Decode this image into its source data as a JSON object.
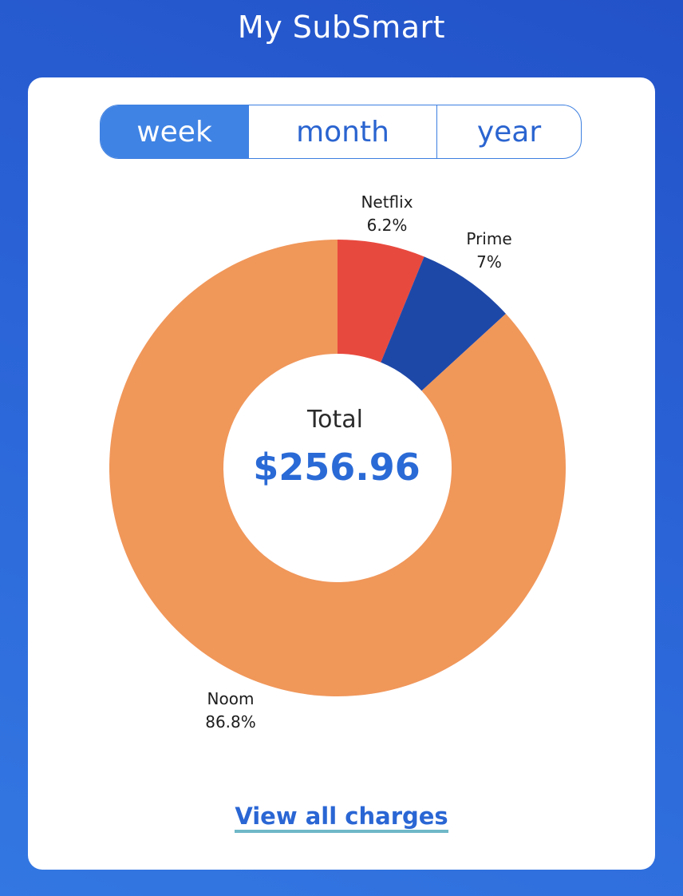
{
  "app": {
    "title": "My SubSmart"
  },
  "period_tabs": {
    "selected": "week",
    "items": [
      {
        "id": "week",
        "label": "week"
      },
      {
        "id": "month",
        "label": "month"
      },
      {
        "id": "year",
        "label": "year"
      }
    ]
  },
  "center": {
    "label": "Total",
    "amount": "$256.96"
  },
  "chart_data": {
    "type": "pie",
    "donut": true,
    "slices": [
      {
        "name": "Netflix",
        "value": 6.2,
        "label": "6.2%",
        "color": "#e8493e"
      },
      {
        "name": "Prime",
        "value": 7,
        "label": "7%",
        "color": "#1e48a8"
      },
      {
        "name": "Noom",
        "value": 86.8,
        "label": "86.8%",
        "color": "#f0975a"
      }
    ]
  },
  "footer": {
    "link_label": "View all charges"
  },
  "colors": {
    "accent": "#2a66d4",
    "active_tab": "#3f83e4",
    "link_underline": "#6fb8c8"
  }
}
